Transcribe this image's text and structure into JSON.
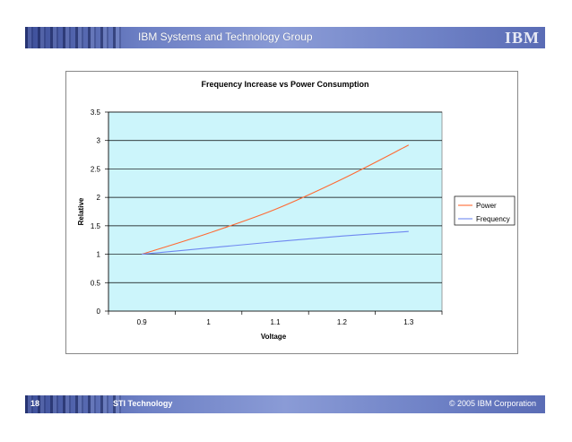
{
  "header": {
    "title": "IBM Systems and Technology Group",
    "logo": "IBM"
  },
  "footer": {
    "page_number": "18",
    "left_text": "STI Technology",
    "right_text": "© 2005 IBM Corporation"
  },
  "colors": {
    "plot_background": "#ccf5fb",
    "power": "#ff6a33",
    "frequency": "#6f88f0",
    "header_bar": "#6c7fc4"
  },
  "chart_data": {
    "type": "line",
    "title": "Frequency Increase vs Power Consumption",
    "xlabel": "Voltage",
    "ylabel": "Relative",
    "x": [
      0.9,
      1.0,
      1.1,
      1.2,
      1.3
    ],
    "x_tick_labels": [
      "0.9",
      "1",
      "1.1",
      "1.2",
      "1.3"
    ],
    "ylim": [
      0,
      3.5
    ],
    "y_ticks": [
      0,
      0.5,
      1,
      1.5,
      2,
      2.5,
      3,
      3.5
    ],
    "y_tick_labels": [
      "0",
      "0.5",
      "1",
      "1.5",
      "2",
      "2.5",
      "3",
      "3.5"
    ],
    "grid": "horizontal",
    "legend_position": "right",
    "series": [
      {
        "name": "Power",
        "values": [
          1.0,
          1.37,
          1.79,
          2.32,
          2.92
        ]
      },
      {
        "name": "Frequency",
        "values": [
          1.0,
          1.11,
          1.22,
          1.32,
          1.4
        ]
      }
    ]
  }
}
